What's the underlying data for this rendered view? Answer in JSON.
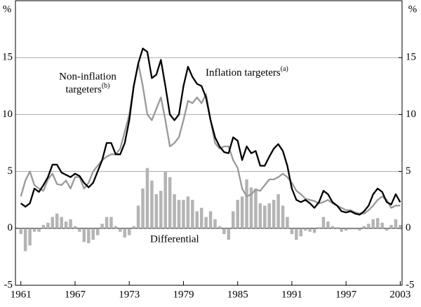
{
  "chart_data": {
    "type": "line",
    "y_unit": "%",
    "y2_unit": "%",
    "x": [
      1961,
      1961.5,
      1962,
      1962.5,
      1963,
      1963.5,
      1964,
      1964.5,
      1965,
      1965.5,
      1966,
      1966.5,
      1967,
      1967.5,
      1968,
      1968.5,
      1969,
      1969.5,
      1970,
      1970.5,
      1971,
      1971.5,
      1972,
      1972.5,
      1973,
      1973.5,
      1974,
      1974.5,
      1975,
      1975.5,
      1976,
      1976.5,
      1977,
      1977.5,
      1978,
      1978.5,
      1979,
      1979.5,
      1980,
      1980.5,
      1981,
      1981.5,
      1982,
      1982.5,
      1983,
      1983.5,
      1984,
      1984.5,
      1985,
      1985.5,
      1986,
      1986.5,
      1987,
      1987.5,
      1988,
      1988.5,
      1989,
      1989.5,
      1990,
      1990.5,
      1991,
      1991.5,
      1992,
      1992.5,
      1993,
      1993.5,
      1994,
      1994.5,
      1995,
      1995.5,
      1996,
      1996.5,
      1997,
      1997.5,
      1998,
      1998.5,
      1999,
      1999.5,
      2000,
      2000.5,
      2001,
      2001.5,
      2002,
      2002.5,
      2003
    ],
    "series": [
      {
        "color": "#000000",
        "values": [
          2.2,
          1.9,
          2.2,
          3.5,
          3.2,
          3.8,
          4.5,
          5.6,
          5.6,
          4.9,
          4.7,
          4.5,
          4.8,
          4.6,
          4.0,
          3.6,
          4.0,
          5.0,
          6.0,
          7.5,
          7.5,
          6.5,
          6.5,
          7.5,
          9.5,
          12.5,
          14.5,
          15.8,
          15.5,
          13.2,
          13.5,
          14.8,
          12.5,
          10.0,
          9.5,
          10.0,
          12.5,
          14.2,
          13.3,
          12.7,
          12.5,
          11.5,
          9.5,
          8.0,
          7.2,
          6.7,
          6.6,
          8.0,
          7.7,
          6.0,
          7.2,
          6.6,
          6.8,
          5.5,
          5.5,
          6.3,
          7.0,
          7.4,
          6.8,
          5.5,
          3.5,
          2.5,
          2.3,
          2.5,
          2.2,
          1.8,
          2.3,
          3.3,
          3.0,
          2.3,
          2.0,
          1.5,
          1.4,
          1.5,
          1.3,
          1.2,
          1.5,
          2.0,
          3.0,
          3.5,
          3.2,
          2.3,
          2.1,
          3.0,
          2.3
        ]
      },
      {
        "color": "#999999",
        "values": [
          2.8,
          4.2,
          5.0,
          3.8,
          3.5,
          3.3,
          4.3,
          4.8,
          3.9,
          3.8,
          4.2,
          3.5,
          4.5,
          4.5,
          3.5,
          4.0,
          5.0,
          5.5,
          6.0,
          6.3,
          6.5,
          6.5,
          7.0,
          8.5,
          10.0,
          12.5,
          14.5,
          12.5,
          10.0,
          9.5,
          10.5,
          11.5,
          9.5,
          7.2,
          7.5,
          8.0,
          9.5,
          11.2,
          11.0,
          11.5,
          11.0,
          11.8,
          9.5,
          7.5,
          7.0,
          7.2,
          7.2,
          6.0,
          5.3,
          3.5,
          2.8,
          3.0,
          3.4,
          3.3,
          3.8,
          4.3,
          4.3,
          4.5,
          4.8,
          4.5,
          4.0,
          3.3,
          3.0,
          2.6,
          2.5,
          2.4,
          2.2,
          2.3,
          2.5,
          2.2,
          2.0,
          1.8,
          1.6,
          1.6,
          1.4,
          1.3,
          1.3,
          1.6,
          2.0,
          2.5,
          2.8,
          2.5,
          1.8,
          2.0,
          2.0
        ]
      },
      {
        "type": "bar",
        "color": "#b4b4b4",
        "values": [
          -0.5,
          -2.0,
          -1.5,
          -0.3,
          -0.3,
          0.3,
          0.5,
          1.0,
          1.3,
          1.0,
          0.6,
          0.8,
          0.2,
          -0.3,
          -1.2,
          -1.3,
          -1.0,
          -0.6,
          0.4,
          1.0,
          1.0,
          0.2,
          -0.3,
          -0.8,
          -0.6,
          0.2,
          2.0,
          3.5,
          5.3,
          4.2,
          3.0,
          3.3,
          5.0,
          4.5,
          3.0,
          2.5,
          2.5,
          2.8,
          2.5,
          1.5,
          1.8,
          1.0,
          1.5,
          0.8,
          0.2,
          -0.5,
          -1.0,
          1.5,
          2.5,
          2.8,
          4.3,
          3.6,
          3.5,
          2.2,
          2.0,
          2.2,
          2.5,
          3.0,
          2.0,
          1.0,
          -0.5,
          -1.0,
          -0.7,
          -0.2,
          -0.3,
          -0.4,
          0.1,
          1.0,
          0.6,
          0.2,
          0.1,
          -0.3,
          -0.2,
          -0.1,
          -0.1,
          -0.2,
          0.2,
          0.4,
          0.8,
          0.9,
          0.5,
          -0.2,
          0.3,
          0.8,
          0.3
        ]
      }
    ],
    "annotations": [
      {
        "text": "Inflation targeters",
        "sup": "(a)"
      },
      {
        "lines": [
          "Non-inflation",
          "targeters"
        ],
        "sup": "(b)"
      },
      {
        "text": "Differential"
      }
    ],
    "xlim": [
      1960.4,
      2003.2
    ],
    "xticks": [
      1961,
      1967,
      1973,
      1979,
      1985,
      1991,
      1997,
      2003
    ],
    "ylim": [
      -5,
      20
    ],
    "yticks": [
      -5,
      0,
      5,
      10,
      15
    ],
    "y2lim": [
      -5,
      20
    ],
    "y2ticks": [
      -5,
      0,
      5,
      10,
      15
    ],
    "grid": true
  }
}
